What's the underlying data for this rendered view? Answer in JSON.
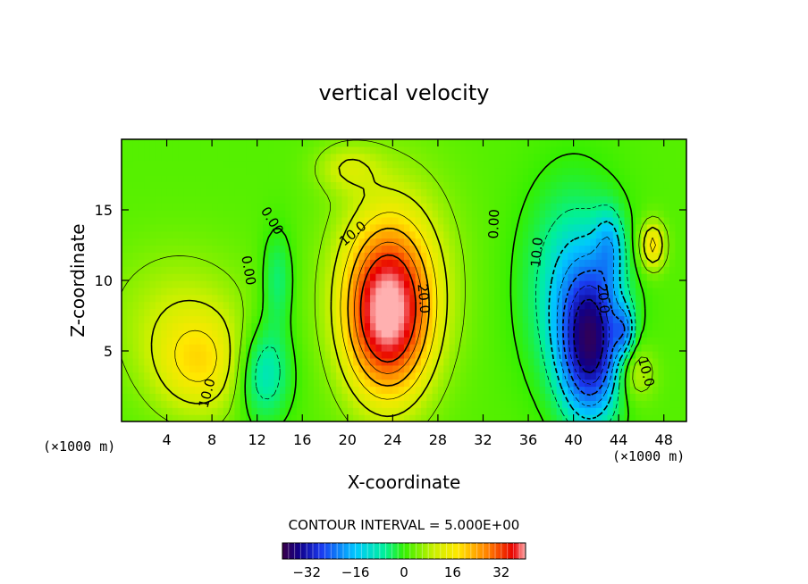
{
  "chart_data": {
    "type": "heatmap",
    "title": "vertical velocity",
    "xlabel": "X-coordinate",
    "ylabel": "Z-coordinate",
    "x_unit": "(×1000 m)",
    "x_unit_right": "(×1000 m)",
    "xlim": [
      0,
      50
    ],
    "ylim": [
      0,
      20
    ],
    "x_ticks": [
      4,
      8,
      12,
      16,
      20,
      24,
      28,
      32,
      36,
      40,
      44,
      48
    ],
    "y_ticks": [
      5,
      10,
      15
    ],
    "contour_interval_text": "CONTOUR INTERVAL = 5.000E+00",
    "contour_interval": 5.0,
    "contour_labels": [
      {
        "text": "0.00",
        "x": 13.3,
        "z": 14.2,
        "angle": 58
      },
      {
        "text": "0.00",
        "x": 11.2,
        "z": 10.7,
        "angle": 80
      },
      {
        "text": "10.0",
        "x": 20.5,
        "z": 13.3,
        "angle": -40
      },
      {
        "text": "20.0",
        "x": 26.7,
        "z": 8.7,
        "angle": 85
      },
      {
        "text": "0.00",
        "x": 33.0,
        "z": 14.0,
        "angle": -88
      },
      {
        "text": "10.0",
        "x": 36.8,
        "z": 12.0,
        "angle": -85
      },
      {
        "text": "20.0",
        "x": 42.6,
        "z": 8.7,
        "angle": 85
      },
      {
        "text": "10.0",
        "x": 7.6,
        "z": 2.0,
        "angle": -75
      },
      {
        "text": "10.0",
        "x": 46.4,
        "z": 3.5,
        "angle": 75
      }
    ],
    "features": [
      {
        "kind": "updraft",
        "x": 23.5,
        "z": 7.5,
        "peak": 33
      },
      {
        "kind": "downdraft",
        "x": 41.5,
        "z": 5.5,
        "peak": -32
      },
      {
        "kind": "updraft",
        "x": 7.0,
        "z": 4.0,
        "peak": 12
      },
      {
        "kind": "downdraft",
        "x": 12.5,
        "z": 3.5,
        "peak": -12
      },
      {
        "kind": "updraft",
        "x": 47.0,
        "z": 12.5,
        "peak": 15
      }
    ],
    "colorbar": {
      "range": [
        -40,
        40
      ],
      "tick_labels": [
        "−32",
        "−16",
        "0",
        "16",
        "32"
      ],
      "tick_values": [
        -32,
        -16,
        0,
        16,
        32
      ]
    }
  }
}
